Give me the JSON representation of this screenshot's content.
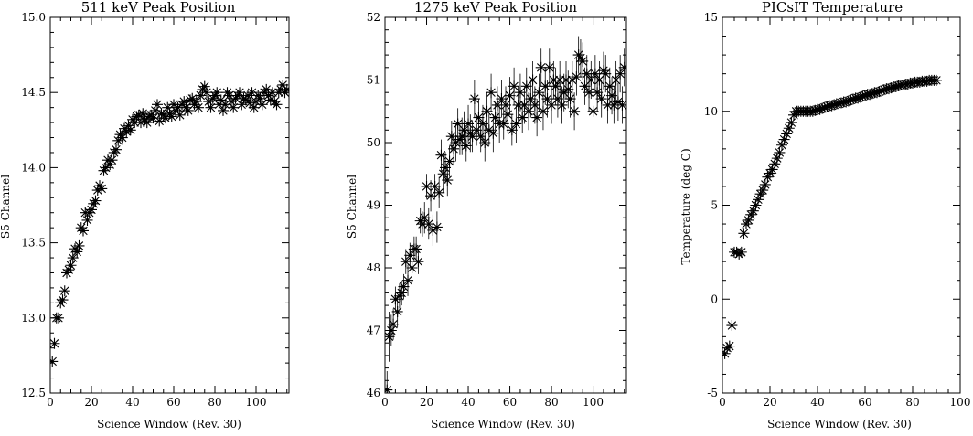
{
  "chart_data": [
    {
      "type": "scatter",
      "title": "511 keV Peak Position",
      "xlabel": "Science Window (Rev. 30)",
      "ylabel": "S5 Channel",
      "xlim": [
        0,
        116
      ],
      "ylim": [
        12.5,
        15.0
      ],
      "xticks": [
        0,
        20,
        40,
        60,
        80,
        100
      ],
      "yticks": [
        12.5,
        13.0,
        13.5,
        14.0,
        14.5,
        15.0
      ],
      "ytick_labels": [
        "12.5",
        "13.0",
        "13.5",
        "14.0",
        "14.5",
        "15.0"
      ],
      "error_bars": false,
      "x": [
        1,
        2,
        3,
        4,
        5,
        6,
        7,
        8,
        9,
        10,
        11,
        12,
        13,
        14,
        15,
        16,
        17,
        18,
        19,
        20,
        21,
        22,
        23,
        24,
        25,
        26,
        27,
        28,
        29,
        30,
        31,
        32,
        33,
        34,
        35,
        36,
        37,
        38,
        39,
        40,
        41,
        42,
        43,
        44,
        45,
        46,
        47,
        48,
        49,
        50,
        51,
        52,
        53,
        54,
        55,
        56,
        57,
        58,
        59,
        60,
        61,
        62,
        63,
        64,
        65,
        66,
        67,
        68,
        69,
        70,
        71,
        72,
        73,
        74,
        75,
        76,
        77,
        78,
        79,
        80,
        81,
        82,
        83,
        84,
        85,
        86,
        87,
        88,
        89,
        90,
        91,
        92,
        93,
        94,
        95,
        96,
        97,
        98,
        99,
        100,
        101,
        102,
        103,
        104,
        105,
        106,
        107,
        108,
        109,
        110,
        111,
        112,
        113,
        114,
        115
      ],
      "y": [
        12.71,
        12.83,
        13.0,
        13.0,
        13.1,
        13.12,
        13.18,
        13.3,
        13.32,
        13.35,
        13.4,
        13.46,
        13.44,
        13.48,
        13.6,
        13.58,
        13.7,
        13.65,
        13.7,
        13.72,
        13.76,
        13.78,
        13.85,
        13.88,
        13.86,
        13.98,
        14.0,
        14.05,
        14.02,
        14.05,
        14.1,
        14.12,
        14.18,
        14.22,
        14.2,
        14.26,
        14.24,
        14.28,
        14.25,
        14.32,
        14.3,
        14.34,
        14.35,
        14.3,
        14.36,
        14.32,
        14.3,
        14.34,
        14.35,
        14.33,
        14.38,
        14.42,
        14.31,
        14.36,
        14.35,
        14.33,
        14.4,
        14.36,
        14.34,
        14.42,
        14.38,
        14.4,
        14.35,
        14.42,
        14.44,
        14.4,
        14.38,
        14.45,
        14.46,
        14.42,
        14.44,
        14.4,
        14.48,
        14.52,
        14.54,
        14.5,
        14.44,
        14.4,
        14.46,
        14.48,
        14.5,
        14.42,
        14.45,
        14.38,
        14.42,
        14.5,
        14.48,
        14.44,
        14.4,
        14.46,
        14.48,
        14.5,
        14.42,
        14.46,
        14.45,
        14.48,
        14.43,
        14.5,
        14.4,
        14.44,
        14.48,
        14.46,
        14.42,
        14.5,
        14.52,
        14.48,
        14.45,
        14.5,
        14.44,
        14.42,
        14.5,
        14.52,
        14.55,
        14.5,
        14.52
      ]
    },
    {
      "type": "scatter",
      "title": "1275 keV Peak Position",
      "xlabel": "Science Window (Rev. 30)",
      "ylabel": "S5 Channel",
      "xlim": [
        0,
        116
      ],
      "ylim": [
        46,
        52
      ],
      "xticks": [
        0,
        20,
        40,
        60,
        80,
        100
      ],
      "yticks": [
        46,
        47,
        48,
        49,
        50,
        51,
        52
      ],
      "ytick_labels": [
        "46",
        "47",
        "48",
        "49",
        "50",
        "51",
        "52"
      ],
      "error_bars": true,
      "x": [
        1,
        2,
        3,
        4,
        5,
        6,
        7,
        8,
        9,
        10,
        11,
        12,
        13,
        14,
        15,
        16,
        17,
        18,
        19,
        20,
        21,
        22,
        23,
        24,
        25,
        26,
        27,
        28,
        29,
        30,
        31,
        32,
        33,
        34,
        35,
        36,
        37,
        38,
        39,
        40,
        41,
        42,
        43,
        44,
        45,
        46,
        47,
        48,
        49,
        50,
        51,
        52,
        53,
        54,
        55,
        56,
        57,
        58,
        59,
        60,
        61,
        62,
        63,
        64,
        65,
        66,
        67,
        68,
        69,
        70,
        71,
        72,
        73,
        74,
        75,
        76,
        77,
        78,
        79,
        80,
        81,
        82,
        83,
        84,
        85,
        86,
        87,
        88,
        89,
        90,
        91,
        92,
        93,
        94,
        95,
        96,
        97,
        98,
        99,
        100,
        101,
        102,
        103,
        104,
        105,
        106,
        107,
        108,
        109,
        110,
        111,
        112,
        113,
        114,
        115
      ],
      "y": [
        46.05,
        46.9,
        47.0,
        47.1,
        47.5,
        47.3,
        47.55,
        47.6,
        47.7,
        48.1,
        47.8,
        48.2,
        48.0,
        48.3,
        48.3,
        48.1,
        48.75,
        48.7,
        48.8,
        49.3,
        48.7,
        49.15,
        48.6,
        49.3,
        48.65,
        49.2,
        49.8,
        49.5,
        49.6,
        49.4,
        49.7,
        50.1,
        49.9,
        50.0,
        50.3,
        50.05,
        50.1,
        50.2,
        49.95,
        50.3,
        50.15,
        50.1,
        50.7,
        50.2,
        50.4,
        50.1,
        50.3,
        50.0,
        50.5,
        50.2,
        50.8,
        50.15,
        50.4,
        50.6,
        50.3,
        50.7,
        50.3,
        50.6,
        50.45,
        50.75,
        50.2,
        50.9,
        50.3,
        50.6,
        50.8,
        50.4,
        50.6,
        50.9,
        50.5,
        50.7,
        51.0,
        50.6,
        50.4,
        50.8,
        51.2,
        50.5,
        50.9,
        50.7,
        51.2,
        50.6,
        51.0,
        50.9,
        50.7,
        51.0,
        50.6,
        50.8,
        51.0,
        50.85,
        50.7,
        51.0,
        50.5,
        51.05,
        51.4,
        51.35,
        51.3,
        50.9,
        51.1,
        50.8,
        51.0,
        50.5,
        51.1,
        50.8,
        51.0,
        50.7,
        51.15,
        51.1,
        50.6,
        50.9,
        50.75,
        50.6,
        51.0,
        50.65,
        51.1,
        50.6,
        51.2
      ],
      "errors": [
        0.3,
        0.4,
        0.25,
        0.25,
        0.2,
        0.25,
        0.2,
        0.2,
        0.2,
        0.2,
        0.25,
        0.2,
        0.2,
        0.2,
        0.2,
        0.2,
        0.2,
        0.2,
        0.25,
        0.2,
        0.25,
        0.25,
        0.25,
        0.2,
        0.25,
        0.25,
        0.25,
        0.3,
        0.25,
        0.25,
        0.25,
        0.25,
        0.25,
        0.3,
        0.25,
        0.25,
        0.3,
        0.3,
        0.25,
        0.3,
        0.3,
        0.25,
        0.3,
        0.25,
        0.3,
        0.25,
        0.3,
        0.3,
        0.3,
        0.25,
        0.3,
        0.3,
        0.25,
        0.3,
        0.3,
        0.3,
        0.25,
        0.3,
        0.3,
        0.3,
        0.25,
        0.3,
        0.3,
        0.3,
        0.3,
        0.25,
        0.3,
        0.3,
        0.3,
        0.3,
        0.3,
        0.3,
        0.3,
        0.3,
        0.3,
        0.3,
        0.3,
        0.3,
        0.3,
        0.3,
        0.3,
        0.3,
        0.3,
        0.3,
        0.3,
        0.3,
        0.3,
        0.3,
        0.3,
        0.3,
        0.3,
        0.3,
        0.3,
        0.3,
        0.3,
        0.3,
        0.3,
        0.3,
        0.3,
        0.3,
        0.3,
        0.3,
        0.3,
        0.3,
        0.3,
        0.3,
        0.3,
        0.3,
        0.3,
        0.3,
        0.3,
        0.3,
        0.3,
        0.3,
        0.3
      ]
    },
    {
      "type": "scatter",
      "title": "PICsIT Temperature",
      "xlabel": "Science Window (Rev. 30)",
      "ylabel": "Temperature (deg C)",
      "xlim": [
        0,
        100
      ],
      "ylim": [
        -5,
        15
      ],
      "xticks": [
        0,
        20,
        40,
        60,
        80,
        100
      ],
      "yticks": [
        -5,
        0,
        5,
        10,
        15
      ],
      "ytick_labels": [
        "-5",
        "0",
        "5",
        "10",
        "15"
      ],
      "error_bars": false,
      "x": [
        1,
        2,
        3,
        4,
        5,
        6,
        7,
        8,
        9,
        10,
        11,
        12,
        13,
        14,
        15,
        16,
        17,
        18,
        19,
        20,
        21,
        22,
        23,
        24,
        25,
        26,
        27,
        28,
        29,
        30,
        31,
        32,
        33,
        34,
        35,
        36,
        37,
        38,
        39,
        40,
        41,
        42,
        43,
        44,
        45,
        46,
        47,
        48,
        49,
        50,
        51,
        52,
        53,
        54,
        55,
        56,
        57,
        58,
        59,
        60,
        61,
        62,
        63,
        64,
        65,
        66,
        67,
        68,
        69,
        70,
        71,
        72,
        73,
        74,
        75,
        76,
        77,
        78,
        79,
        80,
        81,
        82,
        83,
        84,
        85,
        86,
        87,
        88,
        89,
        90
      ],
      "y": [
        -2.9,
        -2.6,
        -2.5,
        -1.4,
        2.5,
        2.5,
        2.4,
        2.5,
        3.5,
        4.0,
        4.2,
        4.5,
        4.7,
        5.0,
        5.3,
        5.6,
        5.8,
        6.1,
        6.5,
        6.7,
        6.9,
        7.2,
        7.5,
        7.8,
        8.2,
        8.5,
        8.8,
        9.1,
        9.4,
        9.8,
        10.0,
        10.0,
        10.0,
        10.0,
        10.0,
        10.0,
        10.0,
        10.0,
        10.05,
        10.1,
        10.1,
        10.15,
        10.2,
        10.25,
        10.3,
        10.3,
        10.35,
        10.4,
        10.4,
        10.45,
        10.5,
        10.5,
        10.55,
        10.6,
        10.65,
        10.7,
        10.7,
        10.75,
        10.8,
        10.85,
        10.9,
        10.9,
        10.95,
        11.0,
        11.0,
        11.05,
        11.1,
        11.15,
        11.2,
        11.2,
        11.25,
        11.3,
        11.3,
        11.35,
        11.4,
        11.4,
        11.45,
        11.45,
        11.5,
        11.5,
        11.55,
        11.55,
        11.55,
        11.6,
        11.6,
        11.6,
        11.65,
        11.65,
        11.65,
        11.65
      ]
    }
  ]
}
